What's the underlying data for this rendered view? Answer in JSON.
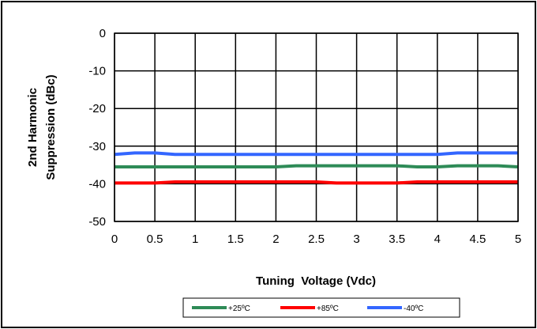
{
  "chart_data": {
    "type": "line",
    "title": "",
    "xlabel": "Tuning  Voltage (Vdc)",
    "ylabel_lines": [
      "2nd Harmonic",
      "Suppression (dBc)"
    ],
    "xlim": [
      0,
      5
    ],
    "ylim": [
      -50,
      0
    ],
    "x_ticks": [
      0,
      0.5,
      1,
      1.5,
      2,
      2.5,
      3,
      3.5,
      4,
      4.5,
      5
    ],
    "x_tick_labels": [
      "0",
      "0.5",
      "1",
      "1.5",
      "2",
      "2.5",
      "3",
      "3.5",
      "4",
      "4.5",
      "5"
    ],
    "y_ticks": [
      0,
      -10,
      -20,
      -30,
      -40,
      -50
    ],
    "y_tick_labels": [
      "0",
      "-10",
      "-20",
      "-30",
      "-40",
      "-50"
    ],
    "grid": true,
    "legend_position": "bottom",
    "series": [
      {
        "name": "+25ºC",
        "color": "#2e8b57",
        "x": [
          0,
          0.25,
          0.5,
          0.75,
          1,
          1.25,
          1.5,
          1.75,
          2,
          2.25,
          2.5,
          2.75,
          3,
          3.25,
          3.5,
          3.75,
          4,
          4.25,
          4.5,
          4.75,
          5
        ],
        "y": [
          -35.5,
          -35.5,
          -35.5,
          -35.5,
          -35.5,
          -35.5,
          -35.5,
          -35.5,
          -35.5,
          -35.2,
          -35.2,
          -35.2,
          -35.2,
          -35.2,
          -35.2,
          -35.5,
          -35.5,
          -35.2,
          -35.2,
          -35.2,
          -35.5
        ]
      },
      {
        "name": "+85ºC",
        "color": "#ff0000",
        "x": [
          0,
          0.25,
          0.5,
          0.75,
          1,
          1.25,
          1.5,
          1.75,
          2,
          2.25,
          2.5,
          2.75,
          3,
          3.25,
          3.5,
          3.75,
          4,
          4.25,
          4.5,
          4.75,
          5
        ],
        "y": [
          -39.8,
          -39.8,
          -39.8,
          -39.5,
          -39.5,
          -39.5,
          -39.5,
          -39.5,
          -39.5,
          -39.5,
          -39.5,
          -39.8,
          -39.8,
          -39.8,
          -39.8,
          -39.5,
          -39.5,
          -39.5,
          -39.5,
          -39.5,
          -39.5
        ]
      },
      {
        "name": "-40ºC",
        "color": "#3366ff",
        "x": [
          0,
          0.25,
          0.5,
          0.75,
          1,
          1.25,
          1.5,
          1.75,
          2,
          2.25,
          2.5,
          2.75,
          3,
          3.25,
          3.5,
          3.75,
          4,
          4.25,
          4.5,
          4.75,
          5
        ],
        "y": [
          -32.2,
          -31.8,
          -31.8,
          -32.2,
          -32.2,
          -32.2,
          -32.2,
          -32.2,
          -32.2,
          -32.2,
          -32.2,
          -32.2,
          -32.2,
          -32.2,
          -32.2,
          -32.2,
          -32.2,
          -31.8,
          -31.8,
          -31.8,
          -31.8
        ]
      }
    ]
  }
}
